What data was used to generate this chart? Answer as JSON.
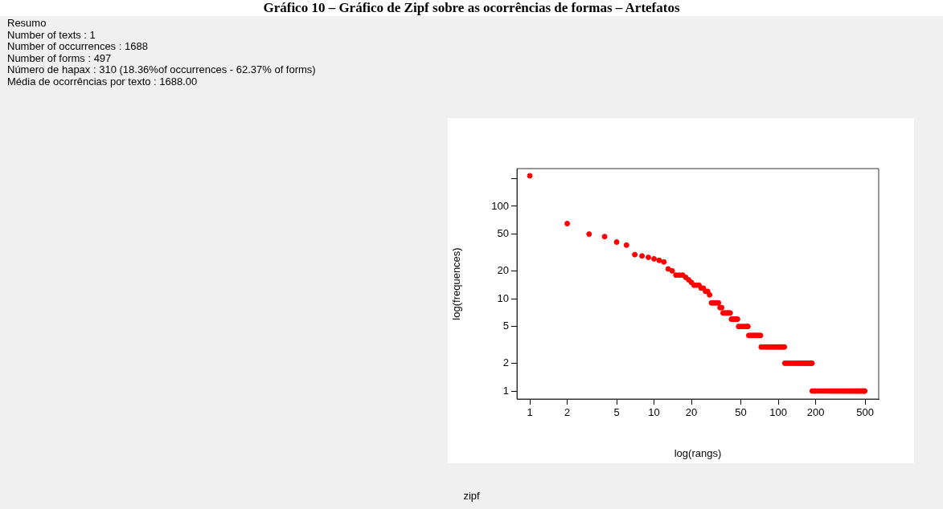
{
  "chart_data": {
    "type": "scatter",
    "title": "Gráfico 10 – Gráfico de Zipf sobre as ocorrências de formas – Artefatos",
    "subtitle": "zipf",
    "xlabel": "log(rangs)",
    "ylabel": "log(frequences)",
    "annotations": [
      "Resumo",
      "Number of texts : 1",
      "Number of occurrences : 1688",
      "Number of forms : 497",
      "Número de hapax : 310 (18.36%of occurrences - 62.37% of forms)",
      "Média de ocorrências por texto : 1688.00"
    ],
    "log": "xy",
    "grid": false,
    "legend": false,
    "marker": "circle",
    "xlim": [
      0.787,
      644
    ],
    "xticks": [
      1,
      2,
      5,
      10,
      20,
      50,
      100,
      200,
      500
    ],
    "ylim": [
      0.82,
      256
    ],
    "yticks": [
      1,
      2,
      5,
      10,
      20,
      50,
      100,
      {
        "value": 200,
        "label": null
      }
    ],
    "series": [
      {
        "color": "#ff0000",
        "x": [
          1,
          2,
          3,
          4,
          5,
          6,
          7,
          8,
          9,
          10,
          11,
          12,
          13,
          14,
          15,
          16,
          17,
          18,
          19,
          20,
          21,
          22,
          23,
          24,
          25,
          26,
          27,
          28,
          29,
          30,
          31,
          32,
          33,
          34,
          35,
          36,
          37,
          38,
          39,
          40,
          41,
          42,
          43,
          44,
          45,
          46,
          47,
          48,
          50,
          52,
          54,
          56,
          57,
          58,
          60,
          62,
          64,
          66,
          68,
          70,
          72,
          73,
          76,
          79,
          82,
          85,
          88,
          91,
          94,
          97,
          100,
          103,
          106,
          109,
          112,
          113,
          118,
          123,
          128,
          133,
          138,
          143,
          148,
          153,
          158,
          163,
          168,
          173,
          178,
          183,
          187,
          188,
          195,
          200,
          210,
          220,
          230,
          240,
          250,
          260,
          270,
          280,
          290,
          300,
          310,
          320,
          330,
          340,
          350,
          360,
          370,
          380,
          390,
          400,
          410,
          420,
          430,
          440,
          450,
          460,
          470,
          480,
          490,
          497
        ],
        "values": [
          214,
          65,
          50,
          47,
          41,
          38,
          30,
          29,
          28,
          27,
          26,
          25,
          21,
          20,
          18,
          18,
          18,
          17,
          16,
          15,
          14,
          14,
          14,
          13,
          13,
          12,
          12,
          11,
          9,
          9,
          9,
          9,
          9,
          8,
          8,
          7,
          7,
          7,
          7,
          7,
          7,
          6,
          6,
          6,
          6,
          6,
          6,
          5,
          5,
          5,
          5,
          5,
          5,
          4,
          4,
          4,
          4,
          4,
          4,
          4,
          4,
          3,
          3,
          3,
          3,
          3,
          3,
          3,
          3,
          3,
          3,
          3,
          3,
          3,
          3,
          2,
          2,
          2,
          2,
          2,
          2,
          2,
          2,
          2,
          2,
          2,
          2,
          2,
          2,
          2,
          2,
          1,
          1,
          1,
          1,
          1,
          1,
          1,
          1,
          1,
          1,
          1,
          1,
          1,
          1,
          1,
          1,
          1,
          1,
          1,
          1,
          1,
          1,
          1,
          1,
          1,
          1,
          1,
          1,
          1,
          1,
          1,
          1,
          1
        ]
      }
    ]
  }
}
